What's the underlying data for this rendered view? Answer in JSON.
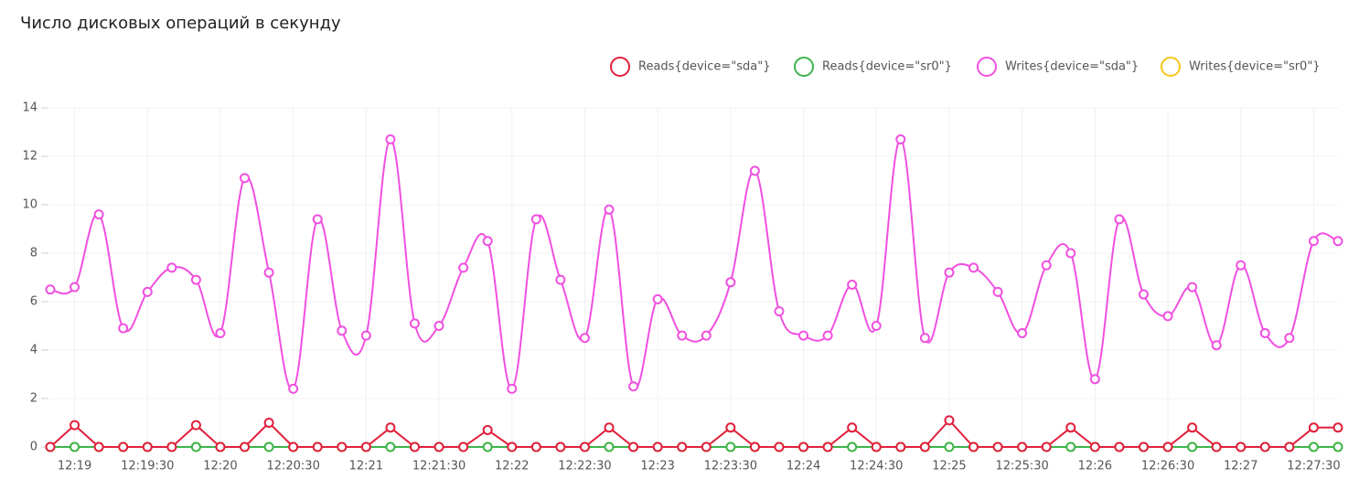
{
  "chart_data": {
    "type": "line",
    "title": "Число дисковых операций в секунду",
    "categories": [
      null,
      "12:19",
      null,
      null,
      "12:19:30",
      null,
      null,
      "12:20",
      null,
      null,
      "12:20:30",
      null,
      null,
      "12:21",
      null,
      null,
      "12:21:30",
      null,
      null,
      "12:22",
      null,
      null,
      "12:22:30",
      null,
      null,
      "12:23",
      null,
      null,
      "12:23:30",
      null,
      null,
      "12:24",
      null,
      null,
      "12:24:30",
      null,
      null,
      "12:25",
      null,
      null,
      "12:25:30",
      null,
      null,
      "12:26",
      null,
      null,
      "12:26:30",
      null,
      null,
      "12:27",
      null,
      null,
      "12:27:30",
      null
    ],
    "series": [
      {
        "name": "Reads{device=\"sda\"}",
        "color": "#e0203c",
        "smooth": false,
        "values": [
          0,
          0.9,
          0,
          0,
          0,
          0,
          0.9,
          0,
          0,
          1.0,
          0,
          0,
          0,
          0,
          0.8,
          0,
          0,
          0,
          0.7,
          0,
          0,
          0,
          0,
          0.8,
          0,
          0,
          0,
          0,
          0.8,
          0,
          0,
          0,
          0,
          0.8,
          0,
          0,
          0,
          1.1,
          0,
          0,
          0,
          0,
          0.8,
          0,
          0,
          0,
          0,
          0.8,
          0,
          0,
          0,
          0,
          0.8,
          0.8
        ]
      },
      {
        "name": "Reads{device=\"sr0\"}",
        "color": "#3cb44b",
        "smooth": false,
        "values": [
          0,
          0,
          0,
          0,
          0,
          0,
          0,
          0,
          0,
          0,
          0,
          0,
          0,
          0,
          0,
          0,
          0,
          0,
          0,
          0,
          0,
          0,
          0,
          0,
          0,
          0,
          0,
          0,
          0,
          0,
          0,
          0,
          0,
          0,
          0,
          0,
          0,
          0,
          0,
          0,
          0,
          0,
          0,
          0,
          0,
          0,
          0,
          0,
          0,
          0,
          0,
          0,
          0,
          0
        ]
      },
      {
        "name": "Writes{device=\"sda\"}",
        "color": "#f050e0",
        "smooth": true,
        "values": [
          6.5,
          6.6,
          9.6,
          4.9,
          6.4,
          7.4,
          6.9,
          4.7,
          11.1,
          7.2,
          2.4,
          9.4,
          4.8,
          4.6,
          12.7,
          5.1,
          5.0,
          7.4,
          8.5,
          2.4,
          9.4,
          6.9,
          4.5,
          9.8,
          2.5,
          6.1,
          4.6,
          4.6,
          6.8,
          11.4,
          5.6,
          4.6,
          4.6,
          6.7,
          5.0,
          12.7,
          4.5,
          7.2,
          7.4,
          6.4,
          4.7,
          7.5,
          8.0,
          2.8,
          9.4,
          6.3,
          5.4,
          6.6,
          4.2,
          7.5,
          4.7,
          4.5,
          8.5,
          8.5
        ]
      },
      {
        "name": "Writes{device=\"sr0\"}",
        "color": "#f5c518",
        "smooth": false,
        "values": [
          0,
          0,
          0,
          0,
          0,
          0,
          0,
          0,
          0,
          0,
          0,
          0,
          0,
          0,
          0,
          0,
          0,
          0,
          0,
          0,
          0,
          0,
          0,
          0,
          0,
          0,
          0,
          0,
          0,
          0,
          0,
          0,
          0,
          0,
          0,
          0,
          0,
          0,
          0,
          0,
          0,
          0,
          0,
          0,
          0,
          0,
          0,
          0,
          0,
          0,
          0,
          0,
          0,
          0
        ]
      }
    ],
    "ylim": [
      0,
      14
    ],
    "yticks": [
      0,
      2,
      4,
      6,
      8,
      10,
      12,
      14
    ],
    "grid": true
  }
}
